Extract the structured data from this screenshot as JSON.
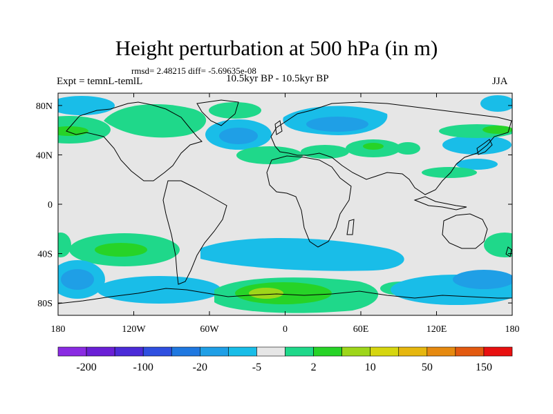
{
  "title": "Height perturbation at 500 hPa (in m)",
  "stats_text": "rmsd= 2.48215 diff= -5.69635e-08",
  "left_label": "Expt = temnL-temlL",
  "center_label": "10.5kyr BP - 10.5kyr BP",
  "right_label": "JJA",
  "map": {
    "projection": "cylindrical-equidistant",
    "lon_range": [
      -180,
      180
    ],
    "lat_range": [
      -90,
      90
    ],
    "background_color": "#e6e6e6",
    "coastline_color": "#000000",
    "lat_ticks": [
      {
        "lat": 80,
        "label": "80N"
      },
      {
        "lat": 40,
        "label": "40N"
      },
      {
        "lat": 0,
        "label": "0"
      },
      {
        "lat": -40,
        "label": "40S"
      },
      {
        "lat": -80,
        "label": "80S"
      }
    ],
    "lon_ticks": [
      {
        "lon": -180,
        "label": "180"
      },
      {
        "lon": -120,
        "label": "120W"
      },
      {
        "lon": -60,
        "label": "60W"
      },
      {
        "lon": 0,
        "label": "0"
      },
      {
        "lon": 60,
        "label": "60E"
      },
      {
        "lon": 120,
        "label": "120E"
      },
      {
        "lon": 180,
        "label": "180"
      }
    ]
  },
  "colorbar": {
    "colors": [
      "#8a2be2",
      "#6a1fd6",
      "#4b2bd8",
      "#2f4fe0",
      "#1f78e0",
      "#1f9fe6",
      "#19bde8",
      "#e6e6e6",
      "#1fd88a",
      "#27d327",
      "#9ed61a",
      "#d6d60f",
      "#e6b70f",
      "#e68a10",
      "#e35a10",
      "#e81010"
    ],
    "labels": [
      {
        "after_box": 1,
        "text": "-200"
      },
      {
        "after_box": 3,
        "text": "-100"
      },
      {
        "after_box": 5,
        "text": "-20"
      },
      {
        "after_box": 7,
        "text": "-5"
      },
      {
        "after_box": 9,
        "text": "2"
      },
      {
        "after_box": 11,
        "text": "10"
      },
      {
        "after_box": 13,
        "text": "50"
      },
      {
        "after_box": 15,
        "text": "150"
      }
    ]
  }
}
